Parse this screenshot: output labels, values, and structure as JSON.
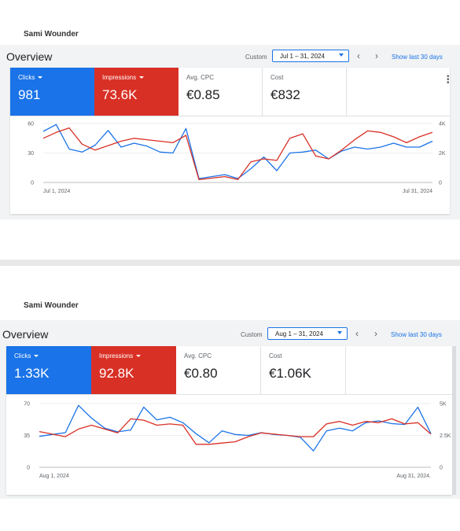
{
  "snapshots": [
    {
      "owner": "Sami Wounder",
      "title": "Overview",
      "custom_label": "Custom",
      "date_range": "Jul 1 – 31, 2024",
      "show_last": "Show last 30 days",
      "metrics": [
        {
          "label": "Clicks",
          "value": "981",
          "color": "#1a73e8",
          "selected": true
        },
        {
          "label": "Impressions",
          "value": "73.6K",
          "color": "#d93025",
          "selected": true
        },
        {
          "label": "Avg. CPC",
          "value": "€0.85",
          "selected": false
        },
        {
          "label": "Cost",
          "value": "€832",
          "selected": false
        }
      ],
      "chart_data": {
        "type": "line",
        "x_start_label": "Jul 1, 2024",
        "x_end_label": "Jul 31, 2024",
        "left_axis": {
          "ticks": [
            "60",
            "30",
            "0"
          ],
          "max": 60
        },
        "right_axis": {
          "ticks": [
            "4K",
            "2K",
            "0"
          ],
          "max": 4000
        },
        "grid": true,
        "series": [
          {
            "name": "Clicks",
            "color": "#1a73e8",
            "axis": "left",
            "values": [
              52,
              59,
              34,
              31,
              38,
              53,
              36,
              40,
              37,
              31,
              30,
              55,
              4,
              6,
              8,
              4,
              14,
              26,
              12,
              30,
              31,
              33,
              24,
              32,
              36,
              34,
              36,
              40,
              36,
              36,
              42
            ]
          },
          {
            "name": "Impressions",
            "color": "#d93025",
            "axis": "right",
            "values": [
              3000,
              3400,
              3700,
              2600,
              2200,
              2500,
              2800,
              3000,
              2900,
              2800,
              2700,
              3200,
              200,
              300,
              400,
              200,
              1400,
              1600,
              1500,
              3000,
              3300,
              1800,
              1600,
              2200,
              2900,
              3500,
              3400,
              3100,
              2700,
              3100,
              3400
            ]
          }
        ]
      }
    },
    {
      "owner": "Sami Wounder",
      "title": "Overview",
      "custom_label": "Custom",
      "date_range": "Aug 1 – 31, 2024",
      "show_last": "Show last 30 days",
      "metrics": [
        {
          "label": "Clicks",
          "value": "1.33K",
          "color": "#1a73e8",
          "selected": true
        },
        {
          "label": "Impressions",
          "value": "92.8K",
          "color": "#d93025",
          "selected": true
        },
        {
          "label": "Avg. CPC",
          "value": "€0.80",
          "selected": false
        },
        {
          "label": "Cost",
          "value": "€1.06K",
          "selected": false
        }
      ],
      "chart_data": {
        "type": "line",
        "x_start_label": "Aug 1, 2024",
        "x_end_label": "Aug 31, 2024.",
        "left_axis": {
          "ticks": [
            "70",
            "35",
            "0"
          ],
          "max": 70
        },
        "right_axis": {
          "ticks": [
            "5K",
            "2.5K",
            "0"
          ],
          "max": 5000
        },
        "grid": true,
        "series": [
          {
            "name": "Clicks",
            "color": "#1a73e8",
            "axis": "left",
            "values": [
              34,
              36,
              38,
              68,
              54,
              43,
              39,
              41,
              66,
              52,
              55,
              49,
              37,
              27,
              40,
              36,
              35,
              38,
              36,
              35,
              33,
              18,
              40,
              43,
              40,
              49,
              51,
              48,
              47,
              66,
              37
            ]
          },
          {
            "name": "Impressions",
            "color": "#d93025",
            "axis": "right",
            "values": [
              2800,
              2600,
              2400,
              3000,
              3300,
              3000,
              2700,
              3800,
              3700,
              3300,
              3400,
              3300,
              1800,
              1800,
              1900,
              2000,
              2400,
              2700,
              2600,
              2500,
              2400,
              2400,
              3400,
              3600,
              3300,
              3600,
              3500,
              3800,
              3400,
              3500,
              2600
            ]
          }
        ]
      }
    }
  ]
}
